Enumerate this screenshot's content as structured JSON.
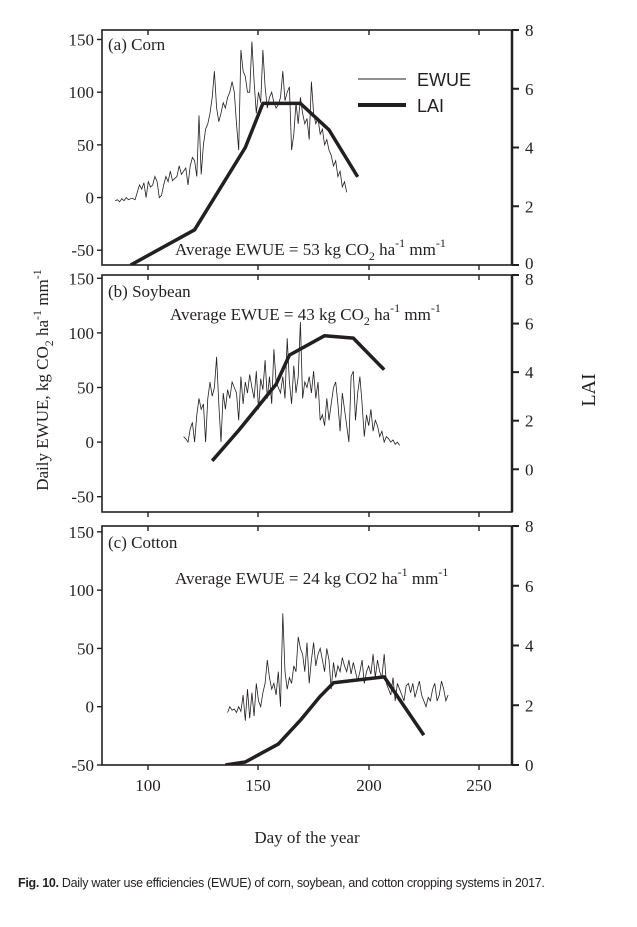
{
  "caption": {
    "label": "Fig. 10.",
    "text": "Daily water use efficiencies (EWUE) of corn, soybean, and cotton cropping systems in 2017."
  },
  "chart_data": [
    {
      "type": "line",
      "panel": "a",
      "title": "(a) Corn",
      "annotation": {
        "prefix": "Average EWUE = 53 kg CO",
        "sub": "2",
        "mid": " ha",
        "sup1": "-1",
        "mid2": " mm",
        "sup2": "-1"
      },
      "xlabel": "Day of the year",
      "ylabel": "Daily EWUE, kg CO2 ha-1 mm-1",
      "y2label": "LAI",
      "xlim": [
        79,
        265
      ],
      "ylim": [
        -64,
        159
      ],
      "y2lim": [
        0,
        8
      ],
      "yticks": [
        "150",
        "100",
        "50",
        "0",
        "-50"
      ],
      "ytick_values": [
        150,
        100,
        50,
        0,
        -50
      ],
      "y2ticks": [
        "8",
        "6",
        "4",
        "2",
        "0"
      ],
      "y2tick_values": [
        8,
        6,
        4,
        2,
        0
      ],
      "legend": {
        "position": "top-right",
        "entries": [
          "EWUE",
          "LAI"
        ]
      },
      "series": [
        {
          "name": "EWUE",
          "x_start": 85,
          "values": [
            -3,
            -2,
            -4,
            -1,
            -3,
            0,
            -2,
            -1,
            -1,
            -2,
            5,
            12,
            8,
            14,
            0,
            15,
            10,
            12,
            20,
            15,
            0,
            2,
            12,
            20,
            15,
            25,
            16,
            18,
            20,
            30,
            22,
            25,
            28,
            12,
            30,
            38,
            35,
            20,
            78,
            22,
            50,
            65,
            70,
            80,
            95,
            120,
            85,
            72,
            80,
            90,
            85,
            95,
            100,
            110,
            100,
            70,
            45,
            140,
            120,
            115,
            100,
            100,
            148,
            110,
            80,
            100,
            90,
            140,
            105,
            85,
            95,
            100,
            90,
            85,
            88,
            95,
            120,
            92,
            100,
            105,
            45,
            60,
            90,
            70,
            95,
            80,
            70,
            75,
            55,
            110,
            80,
            70,
            75,
            60,
            65,
            50,
            55,
            45,
            40,
            30,
            35,
            20,
            25,
            10,
            15,
            5
          ]
        },
        {
          "name": "LAI",
          "x": [
            92,
            121,
            144,
            152,
            169,
            182,
            195
          ],
          "values": [
            0,
            1.2,
            4.0,
            5.5,
            5.5,
            4.6,
            3.0
          ]
        }
      ]
    },
    {
      "type": "line",
      "panel": "b",
      "title": "(b) Soybean",
      "annotation": {
        "prefix": "Average EWUE = 43 kg CO",
        "sub": "2",
        "mid": " ha",
        "sup1": "-1",
        "mid2": " mm",
        "sup2": "-1"
      },
      "xlim": [
        79,
        265
      ],
      "ylim": [
        -64,
        153
      ],
      "y2lim": [
        -1.76,
        8
      ],
      "yticks": [
        "150",
        "100",
        "50",
        "0",
        "-50"
      ],
      "ytick_values": [
        150,
        100,
        50,
        0,
        -50
      ],
      "y2ticks": [
        "8",
        "6",
        "4",
        "2",
        "0"
      ],
      "y2tick_values": [
        8,
        6,
        4,
        2,
        0
      ],
      "series": [
        {
          "name": "EWUE",
          "x_start": 116,
          "values": [
            5,
            3,
            0,
            12,
            18,
            0,
            25,
            40,
            30,
            35,
            0,
            40,
            55,
            42,
            50,
            78,
            35,
            0,
            45,
            30,
            48,
            40,
            55,
            50,
            45,
            20,
            60,
            35,
            55,
            45,
            62,
            50,
            40,
            65,
            30,
            58,
            48,
            75,
            40,
            60,
            35,
            85,
            55,
            50,
            45,
            60,
            40,
            95,
            55,
            35,
            70,
            45,
            60,
            110,
            40,
            55,
            50,
            60,
            45,
            65,
            40,
            55,
            20,
            25,
            15,
            40,
            20,
            35,
            50,
            55,
            35,
            10,
            45,
            30,
            15,
            0,
            60,
            65,
            20,
            45,
            60,
            35,
            5,
            25,
            15,
            30,
            10,
            20,
            15,
            5,
            10,
            0,
            5,
            3,
            0,
            2,
            -2,
            0,
            -3
          ]
        },
        {
          "name": "LAI",
          "x": [
            129,
            141,
            158,
            164,
            180,
            193,
            207
          ],
          "values": [
            0.35,
            1.6,
            3.5,
            4.7,
            5.5,
            5.4,
            4.1
          ]
        }
      ]
    },
    {
      "type": "line",
      "panel": "c",
      "title": "(c) Cotton",
      "annotation": {
        "prefix": "Average EWUE = 24 kg CO2 ha",
        "sub": "",
        "mid": "",
        "sup1": "-1",
        "mid2": " mm",
        "sup2": "-1"
      },
      "xlim": [
        79,
        265
      ],
      "ylim": [
        -50,
        155
      ],
      "y2lim": [
        0,
        8
      ],
      "yticks": [
        "150",
        "100",
        "50",
        "0",
        "-50"
      ],
      "ytick_values": [
        150,
        100,
        50,
        0,
        -50
      ],
      "y2ticks": [
        "8",
        "6",
        "4",
        "2",
        "0"
      ],
      "y2tick_values": [
        8,
        6,
        4,
        2,
        0
      ],
      "xticks": [
        "100",
        "150",
        "200",
        "250"
      ],
      "xtick_values": [
        100,
        150,
        200,
        250
      ],
      "series": [
        {
          "name": "EWUE",
          "x_start": 136,
          "values": [
            -5,
            0,
            -3,
            -2,
            -5,
            0,
            -4,
            10,
            -12,
            15,
            -10,
            12,
            -8,
            20,
            5,
            0,
            12,
            20,
            40,
            25,
            15,
            20,
            10,
            30,
            0,
            80,
            30,
            15,
            25,
            20,
            35,
            30,
            60,
            50,
            45,
            30,
            55,
            20,
            40,
            55,
            35,
            45,
            50,
            40,
            30,
            50,
            40,
            15,
            38,
            25,
            35,
            30,
            42,
            35,
            30,
            40,
            28,
            38,
            30,
            22,
            30,
            40,
            20,
            30,
            35,
            28,
            45,
            25,
            40,
            30,
            25,
            45,
            20,
            15,
            10,
            25,
            5,
            20,
            15,
            10,
            5,
            18,
            20,
            12,
            20,
            8,
            15,
            22,
            10,
            5,
            0,
            8,
            5,
            15,
            20,
            5,
            10,
            22,
            15,
            5,
            10
          ]
        },
        {
          "name": "LAI",
          "x": [
            135,
            144,
            159,
            169,
            178,
            184,
            207,
            225
          ],
          "values": [
            0,
            0.1,
            0.7,
            1.5,
            2.3,
            2.75,
            2.95,
            1.0
          ]
        }
      ]
    }
  ]
}
